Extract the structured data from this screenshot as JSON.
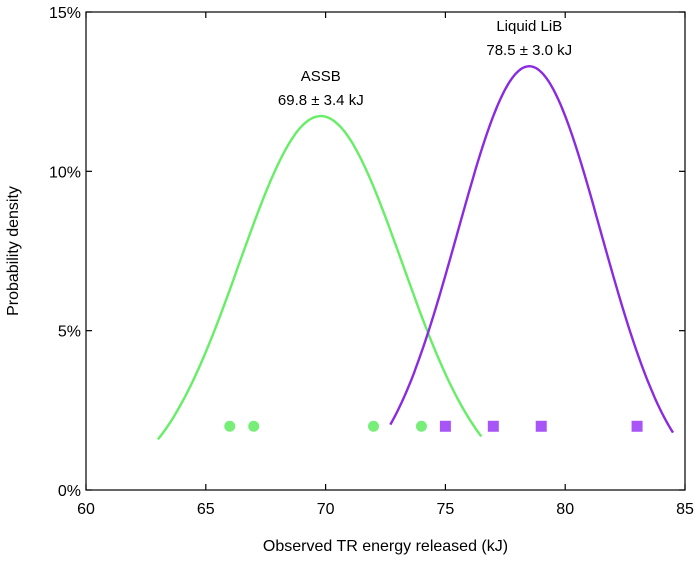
{
  "chart_data": {
    "type": "line",
    "xlabel": "Observed TR energy released (kJ)",
    "ylabel": "Probability density",
    "xlim": [
      60,
      85
    ],
    "ylim": [
      0,
      15
    ],
    "x_ticks": [
      60,
      65,
      70,
      75,
      80,
      85
    ],
    "x_tick_labels": [
      "60",
      "65",
      "70",
      "75",
      "80",
      "85"
    ],
    "y_ticks": [
      0,
      5,
      10,
      15
    ],
    "y_tick_labels": [
      "0%",
      "5%",
      "10%",
      "15%"
    ],
    "grid": false,
    "legend": "none",
    "series": [
      {
        "kind": "curve",
        "color": "#66ee66",
        "mean": 69.8,
        "sd": 3.4,
        "x_range": [
          63.0,
          76.5
        ],
        "name_label": "ASSB",
        "stat_label": "69.8 ± 3.4 kJ"
      },
      {
        "kind": "curve",
        "color": "#8a2be2",
        "mean": 78.5,
        "sd": 3.0,
        "x_range": [
          72.7,
          84.5
        ],
        "name_label": "Liquid LiB",
        "stat_label": "78.5 ± 3.0 kJ"
      }
    ],
    "observations": [
      {
        "marker": "circle",
        "color": "#77ee77",
        "x": [
          66,
          67,
          72,
          74
        ],
        "y": 2.0
      },
      {
        "marker": "square",
        "color": "#a855f7",
        "x": [
          75,
          77,
          79,
          83
        ],
        "y": 2.0
      }
    ]
  }
}
